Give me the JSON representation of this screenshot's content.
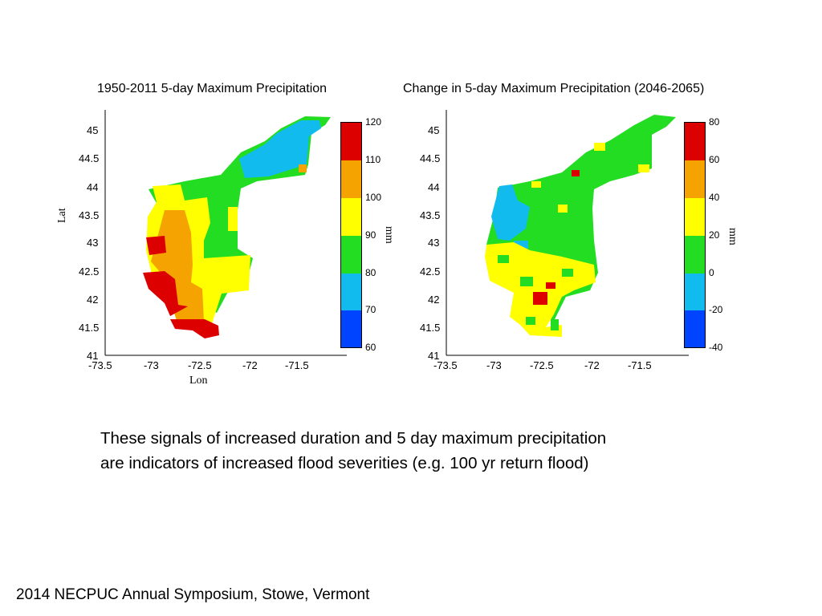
{
  "chart_data": [
    {
      "type": "heatmap",
      "title": "1950-2011 5-day Maximum Precipitation",
      "xlabel": "Lon",
      "ylabel": "Lat",
      "x_ticks": [
        "-73.5",
        "-73",
        "-72.5",
        "-72",
        "-71.5"
      ],
      "y_ticks": [
        "41",
        "41.5",
        "42",
        "42.5",
        "43",
        "43.5",
        "44",
        "44.5",
        "45"
      ],
      "xlim": [
        -73.5,
        -71.0
      ],
      "ylim": [
        41,
        45.2
      ],
      "colorbar": {
        "unit": "mm",
        "ticks": [
          "120",
          "110",
          "100",
          "90",
          "80",
          "70",
          "60"
        ],
        "colors": [
          "#dd0000",
          "#f5a300",
          "#ffff00",
          "#22dd22",
          "#11bbee",
          "#0044ff"
        ]
      },
      "regions": [
        {
          "value": "70-80",
          "color": "#11bbee",
          "bounds": [
            [
              -71.95,
              44.55
            ],
            [
              -71.3,
              45.1
            ]
          ]
        },
        {
          "value": "80-90",
          "color": "#22dd22",
          "bounds": [
            [
              -72.6,
              43.0
            ],
            [
              -71.4,
              45.2
            ]
          ]
        },
        {
          "value": "90-100",
          "color": "#ffff00",
          "bounds": [
            [
              -73.05,
              42.0
            ],
            [
              -72.0,
              44.0
            ]
          ]
        },
        {
          "value": "100-110",
          "color": "#f5a300",
          "bounds": [
            [
              -72.95,
              41.7
            ],
            [
              -72.55,
              43.3
            ]
          ]
        },
        {
          "value": "110-120",
          "color": "#dd0000",
          "bounds": [
            [
              -73.05,
              41.4
            ],
            [
              -72.35,
              43.1
            ]
          ]
        }
      ]
    },
    {
      "type": "heatmap",
      "title": "Change in 5-day Maximum Precipitation (2046-2065)",
      "xlabel": "",
      "ylabel": "",
      "x_ticks": [
        "-73.5",
        "-73",
        "-72.5",
        "-72",
        "-71.5"
      ],
      "y_ticks": [
        "41",
        "41.5",
        "42",
        "42.5",
        "43",
        "43.5",
        "44",
        "44.5",
        "45"
      ],
      "xlim": [
        -73.5,
        -71.0
      ],
      "ylim": [
        41,
        45.2
      ],
      "colorbar": {
        "unit": "mm",
        "ticks": [
          "80",
          "60",
          "40",
          "20",
          "0",
          "-20",
          "-40"
        ],
        "colors": [
          "#dd0000",
          "#f5a300",
          "#ffff00",
          "#22dd22",
          "#11bbee",
          "#0044ff"
        ]
      },
      "regions": [
        {
          "value": "0-20",
          "color": "#22dd22",
          "bounds": [
            [
              -73.0,
              42.2
            ],
            [
              -71.4,
              45.2
            ]
          ]
        },
        {
          "value": "-20-0",
          "color": "#11bbee",
          "bounds": [
            [
              -73.0,
              42.0
            ],
            [
              -72.75,
              44.0
            ]
          ]
        },
        {
          "value": "20-40",
          "color": "#ffff00",
          "bounds": [
            [
              -73.05,
              41.5
            ],
            [
              -72.0,
              42.8
            ]
          ]
        },
        {
          "value": "60-80",
          "color": "#dd0000",
          "bounds": [
            [
              -72.6,
              41.9
            ],
            [
              -72.45,
              42.3
            ]
          ]
        }
      ]
    }
  ],
  "caption_line1": "These signals of increased duration  and 5 day maximum precipitation",
  "caption_line2": "are indicators of increased flood severities (e.g. 100 yr return flood)",
  "footer": "2014 NECPUC Annual Symposium, Stowe, Vermont"
}
